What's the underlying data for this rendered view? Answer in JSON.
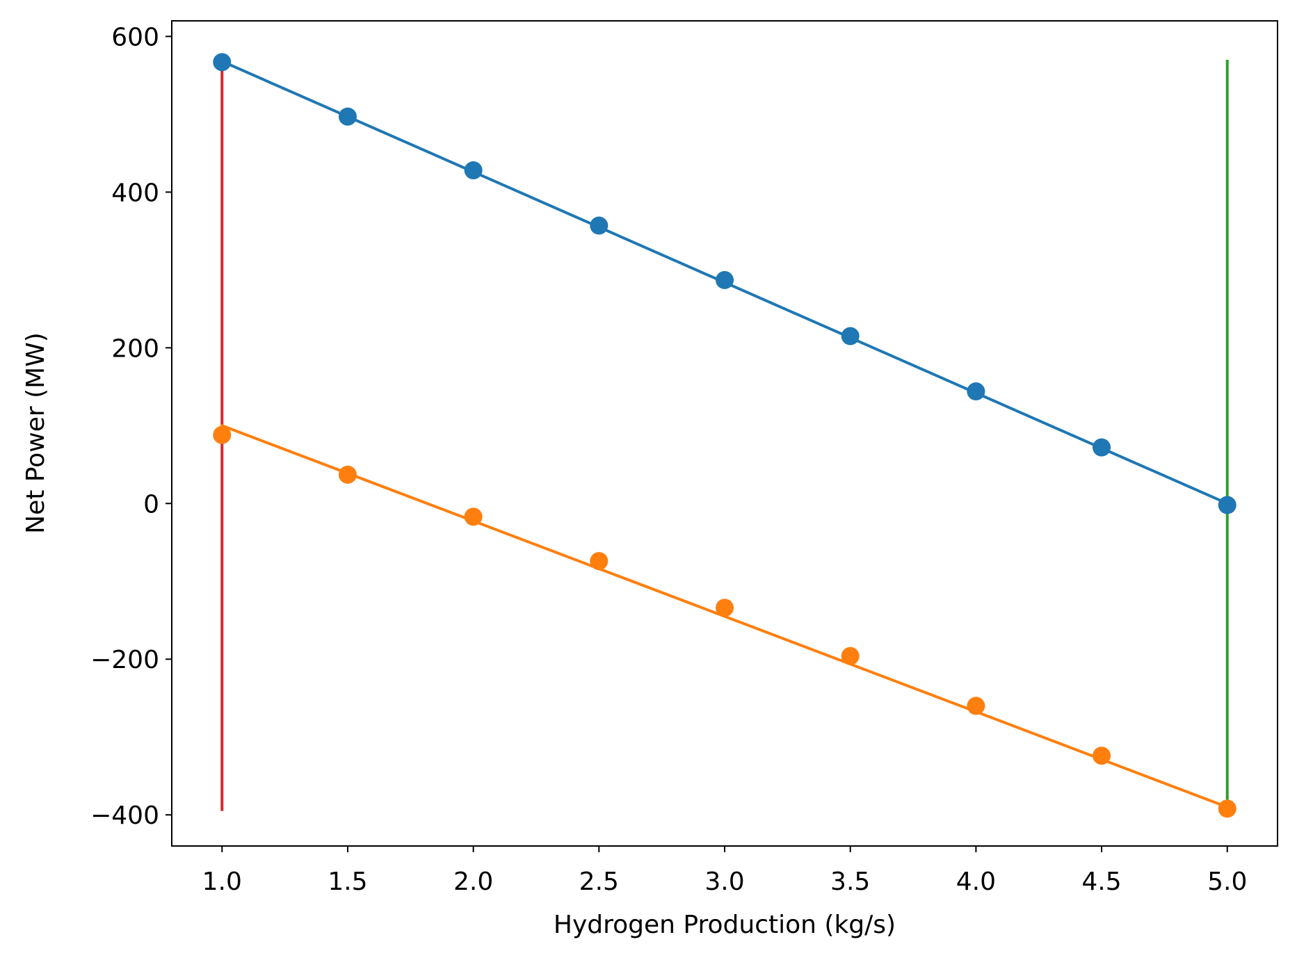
{
  "chart_data": {
    "type": "line",
    "title": "",
    "xlabel": "Hydrogen Production (kg/s)",
    "ylabel": "Net Power (MW)",
    "xlim": [
      0.8,
      5.2
    ],
    "ylim": [
      -440,
      620
    ],
    "grid": false,
    "x_ticks": [
      1.0,
      1.5,
      2.0,
      2.5,
      3.0,
      3.5,
      4.0,
      4.5,
      5.0
    ],
    "x_tick_labels": [
      "1.0",
      "1.5",
      "2.0",
      "2.5",
      "3.0",
      "3.5",
      "4.0",
      "4.5",
      "5.0"
    ],
    "y_ticks": [
      600,
      400,
      200,
      0,
      -200,
      -400
    ],
    "y_tick_labels": [
      "600",
      "400",
      "200",
      "0",
      "−200",
      "−400"
    ],
    "series": [
      {
        "color": "#1f77b4",
        "line_points": {
          "x": [
            1.0,
            5.0
          ],
          "y": [
            568,
            0
          ]
        },
        "marker_points": {
          "x": [
            1.0,
            1.5,
            2.0,
            2.5,
            3.0,
            3.5,
            4.0,
            4.5,
            5.0
          ],
          "y": [
            567,
            497,
            428,
            357,
            287,
            215,
            144,
            72,
            -2
          ]
        }
      },
      {
        "color": "#ff7f0e",
        "line_points": {
          "x": [
            1.0,
            5.0
          ],
          "y": [
            100,
            -390
          ]
        },
        "marker_points": {
          "x": [
            1.0,
            1.5,
            2.0,
            2.5,
            3.0,
            3.5,
            4.0,
            4.5,
            5.0
          ],
          "y": [
            88,
            37,
            -17,
            -74,
            -134,
            -196,
            -260,
            -324,
            -392
          ]
        }
      }
    ],
    "vertical_lines": [
      {
        "color": "#d62728",
        "x": 1.0,
        "y": [
          -395,
          570
        ]
      },
      {
        "color": "#2ca02c",
        "x": 5.0,
        "y": [
          -395,
          570
        ]
      }
    ]
  }
}
